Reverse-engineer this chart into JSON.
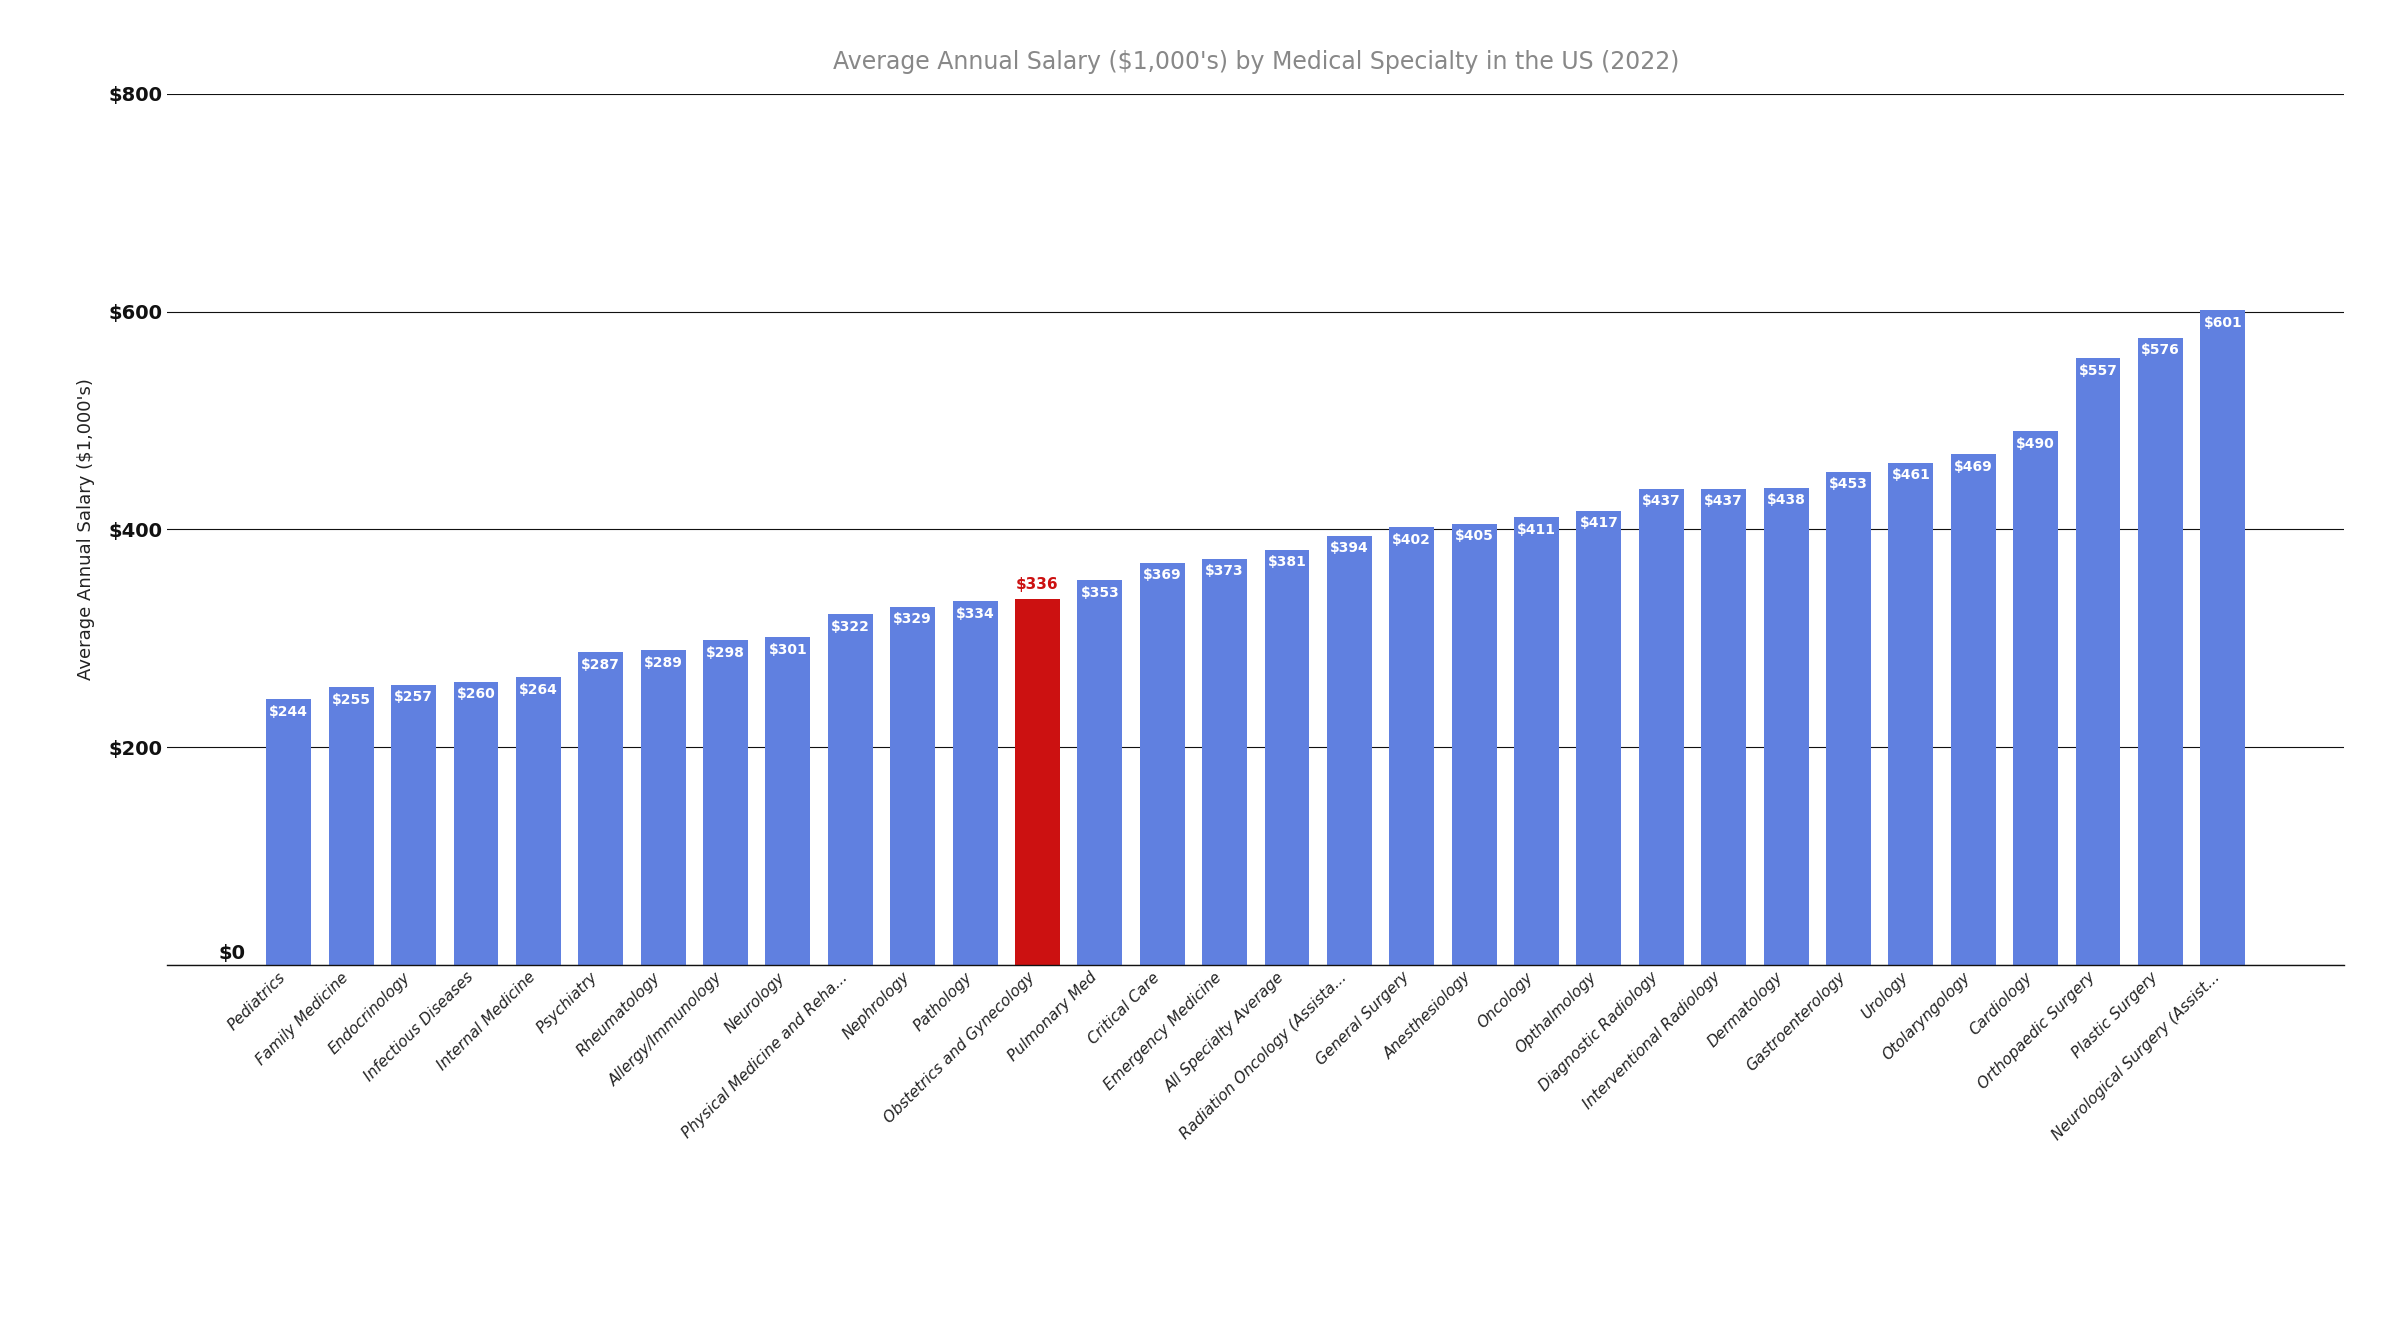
{
  "title": "Average Annual Salary ($1,000's) by Medical Specialty in the US (2022)",
  "ylabel": "Average Annual Salary ($1,000's)",
  "categories": [
    "Pediatrics",
    "Family Medicine",
    "Endocrinology",
    "Infectious Diseases",
    "Internal Medicine",
    "Psychiatry",
    "Rheumatology",
    "Allergy/Immunology",
    "Neurology",
    "Physical Medicine and Reha...",
    "Nephrology",
    "Pathology",
    "Obstetrics and Gynecology",
    "Pulmonary Med",
    "Critical Care",
    "Emergency Medicine",
    "All Specialty Average",
    "Radiation Oncology (Assista...",
    "General Surgery",
    "Anesthesiology",
    "Oncology",
    "Opthalmology",
    "Diagnostic Radiology",
    "Interventional Radiology",
    "Dermatology",
    "Gastroenterology",
    "Urology",
    "Otolaryngology",
    "Cardiology",
    "Orthopaedic Surgery",
    "Plastic Surgery",
    "Neurological Surgery (Assist..."
  ],
  "values": [
    244,
    255,
    257,
    260,
    264,
    287,
    289,
    298,
    301,
    322,
    329,
    334,
    336,
    353,
    369,
    373,
    381,
    394,
    402,
    405,
    411,
    417,
    437,
    437,
    438,
    453,
    461,
    469,
    490,
    557,
    576,
    601
  ],
  "highlight_index": 12,
  "bar_color": "#6080e0",
  "highlight_color": "#cc1111",
  "highlight_label_color": "#cc1111",
  "label_color_default": "#ffffff",
  "ylim": [
    0,
    800
  ],
  "yticks": [
    0,
    200,
    400,
    600,
    800
  ],
  "ytick_labels": [
    "$0",
    "$200",
    "$400",
    "$600",
    "$800"
  ],
  "background_color": "#ffffff",
  "title_color": "#888888",
  "title_fontsize": 17,
  "axis_label_fontsize": 13,
  "bar_label_fontsize": 10,
  "tick_label_fontsize": 14,
  "xtick_label_fontsize": 11
}
